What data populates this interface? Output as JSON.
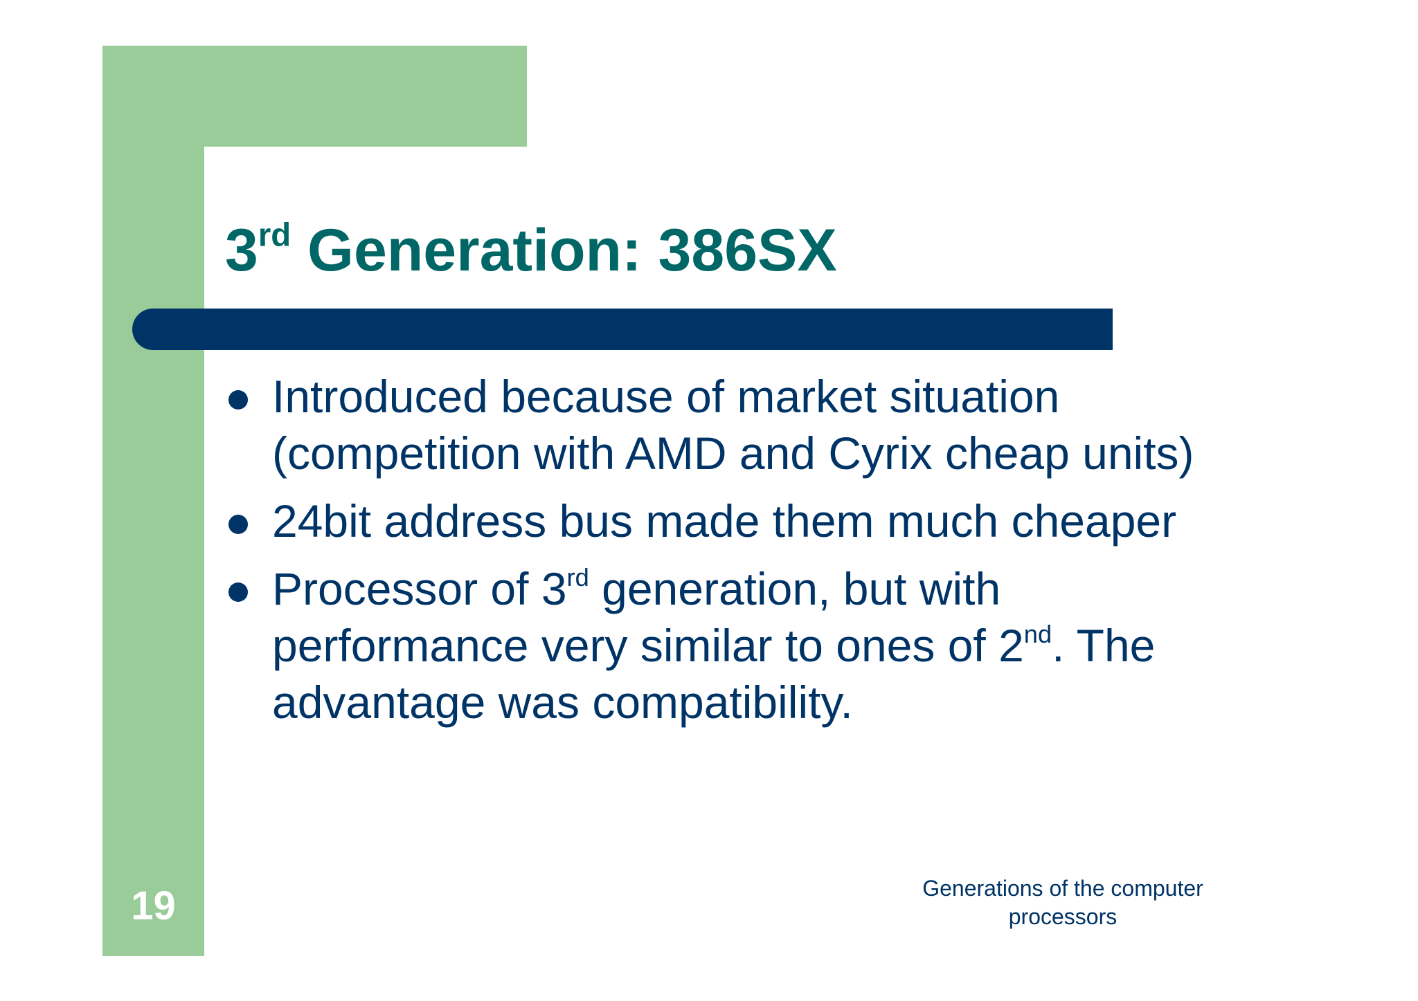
{
  "slide": {
    "title": {
      "prefix": "3",
      "prefix_sup": "rd",
      "rest": " Generation: 386SX"
    },
    "bullets": [
      {
        "text": "Introduced because of market situation (competition with AMD and Cyrix cheap units)"
      },
      {
        "text": "24bit address bus made them much cheaper"
      },
      {
        "part1": "Processor of 3",
        "sup1": "rd",
        "part2": " generation, but with performance very similar to ones of 2",
        "sup2": "nd",
        "part3": ". The advantage was compatibility."
      }
    ],
    "page_number": "19",
    "footer": "Generations of the computer processors"
  },
  "colors": {
    "green_band": "#99cc99",
    "navy_rule": "#003366",
    "title_teal": "#006666",
    "body_text": "#003366"
  }
}
